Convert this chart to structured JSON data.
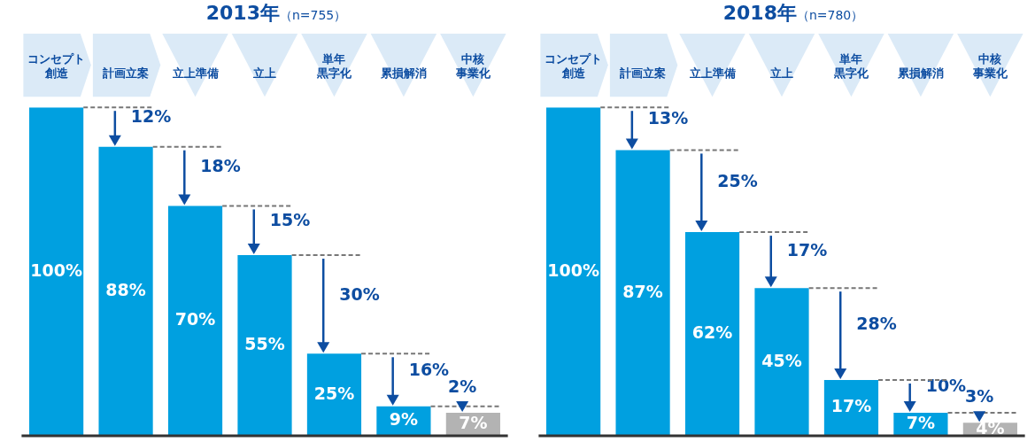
{
  "chart_data": [
    {
      "type": "bar",
      "title": "2013年",
      "subtitle": "（n=755）",
      "categories": [
        "コンセプト創造",
        "計画立案",
        "立上準備",
        "立上",
        "単年黒字化",
        "累損解消",
        "中核事業化"
      ],
      "values": [
        100,
        88,
        70,
        55,
        25,
        9,
        7
      ],
      "colors": [
        "#00a0e0",
        "#00a0e0",
        "#00a0e0",
        "#00a0e0",
        "#00a0e0",
        "#00a0e0",
        "#b3b3b3"
      ],
      "value_labels": [
        "100%",
        "88%",
        "70%",
        "55%",
        "25%",
        "9%",
        "7%"
      ],
      "tick_labels": "x",
      "grid": false,
      "legend": false,
      "annotations": [
        {
          "text": "12%",
          "x": "計画立案",
          "y": 88
        },
        {
          "text": "18%",
          "x": "立上準備",
          "y": 70
        },
        {
          "text": "15%",
          "x": "立上",
          "y": 55
        },
        {
          "text": "30%",
          "x": "単年黒字化",
          "y": 25
        },
        {
          "text": "16%",
          "x": "累損解消",
          "y": 9
        },
        {
          "text": "2%",
          "x": "中核事業化",
          "y": 7
        }
      ]
    },
    {
      "type": "bar",
      "title": "2018年",
      "subtitle": "（n=780）",
      "categories": [
        "コンセプト創造",
        "計画立案",
        "立上準備",
        "立上",
        "単年黒字化",
        "累損解消",
        "中核事業化"
      ],
      "values": [
        100,
        87,
        62,
        45,
        17,
        7,
        4
      ],
      "colors": [
        "#00a0e0",
        "#00a0e0",
        "#00a0e0",
        "#00a0e0",
        "#00a0e0",
        "#00a0e0",
        "#b3b3b3"
      ],
      "value_labels": [
        "100%",
        "87%",
        "62%",
        "45%",
        "17%",
        "7%",
        "4%"
      ],
      "tick_labels": "x",
      "grid": false,
      "legend": false,
      "annotations": [
        {
          "text": "13%",
          "x": "計画立案",
          "y": 87
        },
        {
          "text": "25%",
          "x": "立上準備",
          "y": 62
        },
        {
          "text": "17%",
          "x": "立上",
          "y": 45
        },
        {
          "text": "28%",
          "x": "単年黒字化",
          "y": 17
        },
        {
          "text": "10%",
          "x": "累損解消",
          "y": 7
        },
        {
          "text": "3%",
          "x": "中核事業化",
          "y": 4
        }
      ]
    }
  ]
}
